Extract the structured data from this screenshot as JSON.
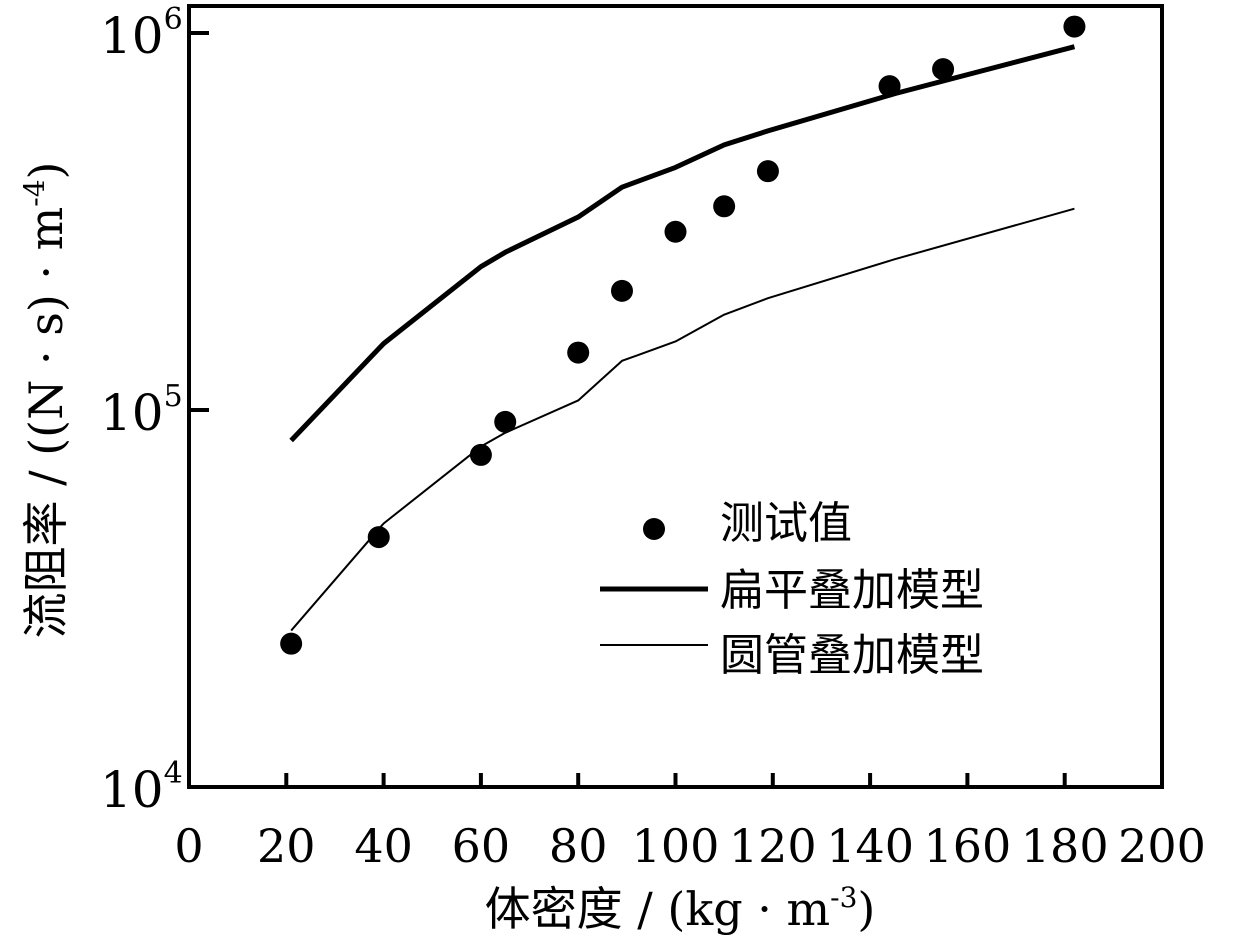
{
  "chart_data": {
    "type": "scatter",
    "title": "",
    "xlabel": "体密度 / (kg · m",
    "xlabel_sup": "-3",
    "xlabel_end": ")",
    "ylabel": "流阻率 / ((N · s) · m",
    "ylabel_sup": "-4",
    "ylabel_end": ")",
    "xlim": [
      0,
      200
    ],
    "ylim": [
      10000,
      1000000
    ],
    "yscale": "log",
    "grid": false,
    "legend_position": "lower-right",
    "x_ticks": [
      "0",
      "20",
      "40",
      "60",
      "80",
      "100",
      "120",
      "140",
      "160",
      "180",
      "200"
    ],
    "x_tick_values": [
      0,
      20,
      40,
      60,
      80,
      100,
      120,
      140,
      160,
      180,
      200
    ],
    "y_ticks": [
      {
        "base": "10",
        "exp": "4",
        "value": 10000
      },
      {
        "base": "10",
        "exp": "5",
        "value": 100000
      },
      {
        "base": "10",
        "exp": "6",
        "value": 1000000
      }
    ],
    "series": [
      {
        "name": "测试值",
        "kind": "scatter",
        "color": "#000000",
        "x": [
          21,
          39,
          60,
          65,
          80,
          89,
          100,
          110,
          119,
          144,
          155,
          182
        ],
        "y": [
          24000,
          46000,
          76000,
          93000,
          142000,
          207000,
          297000,
          347000,
          430000,
          723000,
          802000,
          1040000
        ]
      },
      {
        "name": "扁平叠加模型",
        "kind": "line-thick",
        "color": "#000000",
        "x": [
          21,
          40,
          60,
          65,
          80,
          89,
          100,
          110,
          119,
          145,
          182
        ],
        "y": [
          83000,
          150000,
          240000,
          262000,
          325000,
          390000,
          440000,
          505000,
          550000,
          690000,
          920000
        ]
      },
      {
        "name": "圆管叠加模型",
        "kind": "line-thin",
        "color": "#000000",
        "x": [
          21,
          40,
          60,
          65,
          80,
          89,
          100,
          110,
          119,
          145,
          182
        ],
        "y": [
          26000,
          50000,
          80000,
          87000,
          106000,
          135000,
          152000,
          179000,
          198000,
          251000,
          342000
        ]
      }
    ]
  }
}
